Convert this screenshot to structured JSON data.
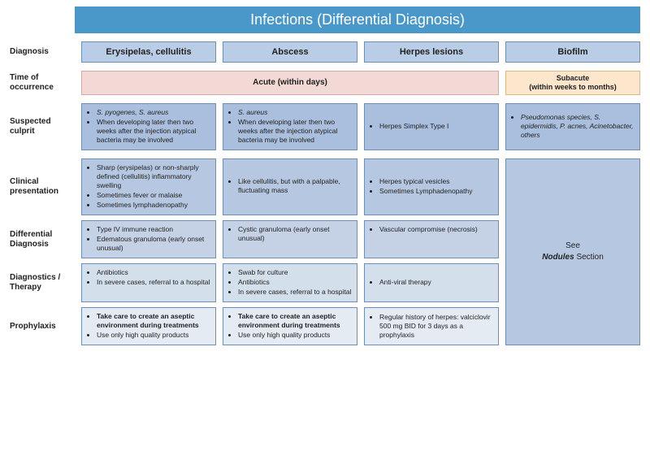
{
  "colors": {
    "title_bg": "#4a98c9",
    "header_bg": "#b9cde6",
    "border": "#6a8fb8",
    "acute_bg": "#f2d9d6",
    "acute_border": "#d4a8a3",
    "subacute_bg": "#fce6cc",
    "subacute_border": "#e0b880",
    "culprit_bg": "#a9bfdd",
    "clinical_bg": "#b6c8e1",
    "diffdx_bg": "#c5d2e6",
    "therapy_bg": "#d4dfec",
    "proph_bg": "#e4ebf3"
  },
  "title": "Infections (Differential Diagnosis)",
  "row_labels": {
    "diagnosis": "Diagnosis",
    "time": "Time of occurrence",
    "culprit": "Suspected culprit",
    "clinical": "Clinical presentation",
    "diffdx": "Differential Diagnosis",
    "therapy": "Diagnostics / Therapy",
    "proph": "Prophylaxis"
  },
  "columns": {
    "c1": "Erysipelas, cellulitis",
    "c2": "Abscess",
    "c3": "Herpes lesions",
    "c4": "Biofilm"
  },
  "time": {
    "acute": "Acute (within days)",
    "subacute_1": "Subacute",
    "subacute_2": "(within weeks to months)"
  },
  "culprit": {
    "c1": [
      {
        "t": "S. pyogenes, S. aureus",
        "i": true
      },
      {
        "t": "When developing later then two weeks after the injection atypical bacteria may be involved"
      }
    ],
    "c2": [
      {
        "t": "S. aureus",
        "i": true
      },
      {
        "t": "When developing later then two weeks after the injection atypical bacteria may be involved"
      }
    ],
    "c3": [
      {
        "t": "Herpes Simplex Type I"
      }
    ],
    "c4": [
      {
        "t": "Pseudomonas species, S. epidermidis, P. acnes, Acinetobacter, others",
        "i": true
      }
    ]
  },
  "clinical": {
    "c1": [
      {
        "t": "Sharp (erysipelas) or non-sharply defined (cellulitis) inflammatory swelling"
      },
      {
        "t": "Sometimes fever or malaise"
      },
      {
        "t": "Sometimes lymphadenopathy"
      }
    ],
    "c2": [
      {
        "t": "Like cellulitis, but with a palpable, fluctuating mass"
      }
    ],
    "c3": [
      {
        "t": "Herpes typical vesicles"
      },
      {
        "t": "Sometimes Lymphadenopathy"
      }
    ]
  },
  "diffdx": {
    "c1": [
      {
        "t": "Type IV immune reaction"
      },
      {
        "t": "Edematous granuloma (early onset unusual)"
      }
    ],
    "c2": [
      {
        "t": "Cystic granuloma (early onset unusual)"
      }
    ],
    "c3": [
      {
        "t": "Vascular compromise (necrosis)"
      }
    ]
  },
  "therapy": {
    "c1": [
      {
        "t": "Antibiotics"
      },
      {
        "t": "In severe cases, referral to a hospital"
      }
    ],
    "c2": [
      {
        "t": "Swab for culture"
      },
      {
        "t": "Antibiotics"
      },
      {
        "t": "In severe cases, referral to a hospital"
      }
    ],
    "c3": [
      {
        "t": "Anti-viral therapy"
      }
    ]
  },
  "proph": {
    "c1": [
      {
        "t": "Take care to create an aseptic environment during treatments",
        "b": true
      },
      {
        "t": "Use only high quality products"
      }
    ],
    "c2": [
      {
        "t": "Take care to create an aseptic environment during treatments",
        "b": true
      },
      {
        "t": "Use only high quality products"
      }
    ],
    "c3": [
      {
        "t": "Regular history of herpes: valciclovir 500 mg BID for 3 days as a prophylaxis"
      }
    ]
  },
  "biofilm_note_pre": "See",
  "biofilm_note_em": "Nodules",
  "biofilm_note_post": "Section"
}
